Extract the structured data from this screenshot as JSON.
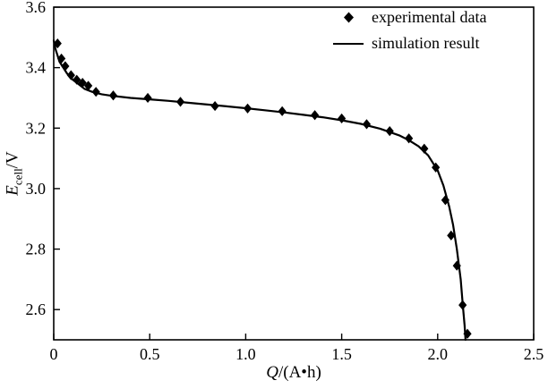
{
  "chart_data": {
    "type": "line+scatter",
    "title": "",
    "xlabel": "Q/(A•h)",
    "xlabel_parts": {
      "variable": "Q",
      "rest": "/(A•h)"
    },
    "ylabel": "E_cell/V",
    "ylabel_parts": {
      "variable": "E",
      "subscript": "cell",
      "rest": "/V"
    },
    "xlim": [
      0,
      2.5
    ],
    "ylim": [
      2.5,
      3.6
    ],
    "xticks": [
      0,
      0.5,
      1.0,
      1.5,
      2.0,
      2.5
    ],
    "xtick_labels": [
      "0",
      "0.5",
      "1.0",
      "1.5",
      "2.0",
      "2.5"
    ],
    "yticks": [
      2.6,
      2.8,
      3.0,
      3.2,
      3.4,
      3.6
    ],
    "ytick_labels": [
      "2.6",
      "2.8",
      "3.0",
      "3.2",
      "3.4",
      "3.6"
    ],
    "grid": false,
    "legend_position": "top-right-inside",
    "axis_color": "#000000",
    "series": [
      {
        "name": "experimental data",
        "type": "scatter",
        "marker": "diamond",
        "color": "#000000",
        "points": [
          [
            0.02,
            3.48
          ],
          [
            0.04,
            3.43
          ],
          [
            0.06,
            3.405
          ],
          [
            0.09,
            3.375
          ],
          [
            0.12,
            3.36
          ],
          [
            0.15,
            3.35
          ],
          [
            0.18,
            3.34
          ],
          [
            0.22,
            3.32
          ],
          [
            0.31,
            3.308
          ],
          [
            0.49,
            3.3
          ],
          [
            0.66,
            3.287
          ],
          [
            0.84,
            3.273
          ],
          [
            1.01,
            3.265
          ],
          [
            1.19,
            3.256
          ],
          [
            1.36,
            3.243
          ],
          [
            1.5,
            3.232
          ],
          [
            1.63,
            3.213
          ],
          [
            1.75,
            3.19
          ],
          [
            1.85,
            3.166
          ],
          [
            1.93,
            3.132
          ],
          [
            1.99,
            3.07
          ],
          [
            2.04,
            2.962
          ],
          [
            2.07,
            2.845
          ],
          [
            2.1,
            2.745
          ],
          [
            2.13,
            2.615
          ],
          [
            2.155,
            2.52
          ]
        ]
      },
      {
        "name": "simulation result",
        "type": "line",
        "color": "#000000",
        "points": [
          [
            0.0,
            3.49
          ],
          [
            0.01,
            3.46
          ],
          [
            0.02,
            3.44
          ],
          [
            0.03,
            3.42
          ],
          [
            0.05,
            3.4
          ],
          [
            0.07,
            3.38
          ],
          [
            0.1,
            3.36
          ],
          [
            0.13,
            3.345
          ],
          [
            0.16,
            3.33
          ],
          [
            0.2,
            3.32
          ],
          [
            0.25,
            3.312
          ],
          [
            0.3,
            3.307
          ],
          [
            0.4,
            3.3
          ],
          [
            0.5,
            3.295
          ],
          [
            0.6,
            3.29
          ],
          [
            0.7,
            3.284
          ],
          [
            0.8,
            3.278
          ],
          [
            0.9,
            3.272
          ],
          [
            1.0,
            3.266
          ],
          [
            1.1,
            3.259
          ],
          [
            1.2,
            3.252
          ],
          [
            1.3,
            3.244
          ],
          [
            1.4,
            3.236
          ],
          [
            1.5,
            3.226
          ],
          [
            1.6,
            3.214
          ],
          [
            1.7,
            3.198
          ],
          [
            1.8,
            3.176
          ],
          [
            1.85,
            3.16
          ],
          [
            1.9,
            3.14
          ],
          [
            1.95,
            3.11
          ],
          [
            2.0,
            3.06
          ],
          [
            2.03,
            3.01
          ],
          [
            2.06,
            2.94
          ],
          [
            2.08,
            2.88
          ],
          [
            2.1,
            2.8
          ],
          [
            2.12,
            2.7
          ],
          [
            2.13,
            2.62
          ],
          [
            2.14,
            2.55
          ],
          [
            2.145,
            2.5
          ]
        ]
      }
    ]
  }
}
